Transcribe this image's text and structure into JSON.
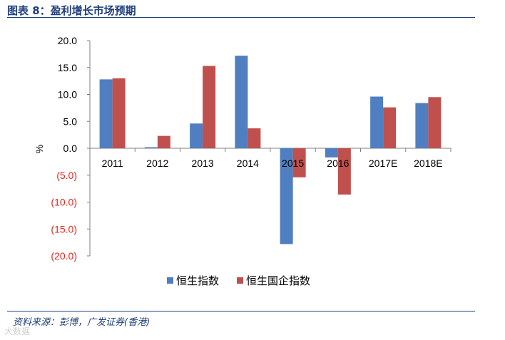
{
  "header": {
    "title": "图表 8：盈利增长市场预期"
  },
  "footer": {
    "source": "资料来源：彭博，广发证券(香港)",
    "watermark": "大数据"
  },
  "colors": {
    "series1": "#4f7fc0",
    "series2": "#c0504d",
    "negative_tick": "#e3241b",
    "title": "#1f3f7a"
  },
  "chart_data": {
    "type": "bar",
    "title": "",
    "xlabel": "",
    "ylabel": "%",
    "ylim": [
      -20,
      20
    ],
    "yticks": [
      20,
      15,
      10,
      5,
      0,
      -5,
      -10,
      -15,
      -20
    ],
    "ytick_labels": [
      "20.0",
      "15.0",
      "10.0",
      "5.0",
      "0.0",
      "(5.0)",
      "(10.0)",
      "(15.0)",
      "(20.0)"
    ],
    "categories": [
      "2011",
      "2012",
      "2013",
      "2014",
      "2015",
      "2016",
      "2017E",
      "2018E"
    ],
    "series": [
      {
        "name": "恒生指数",
        "values": [
          12.8,
          0.2,
          4.6,
          17.2,
          -17.8,
          -1.7,
          9.6,
          8.4
        ]
      },
      {
        "name": "恒生国企指数",
        "values": [
          13.0,
          2.3,
          15.3,
          3.7,
          -5.4,
          -8.6,
          7.6,
          9.5
        ]
      }
    ],
    "legend_position": "bottom",
    "grid": false
  }
}
